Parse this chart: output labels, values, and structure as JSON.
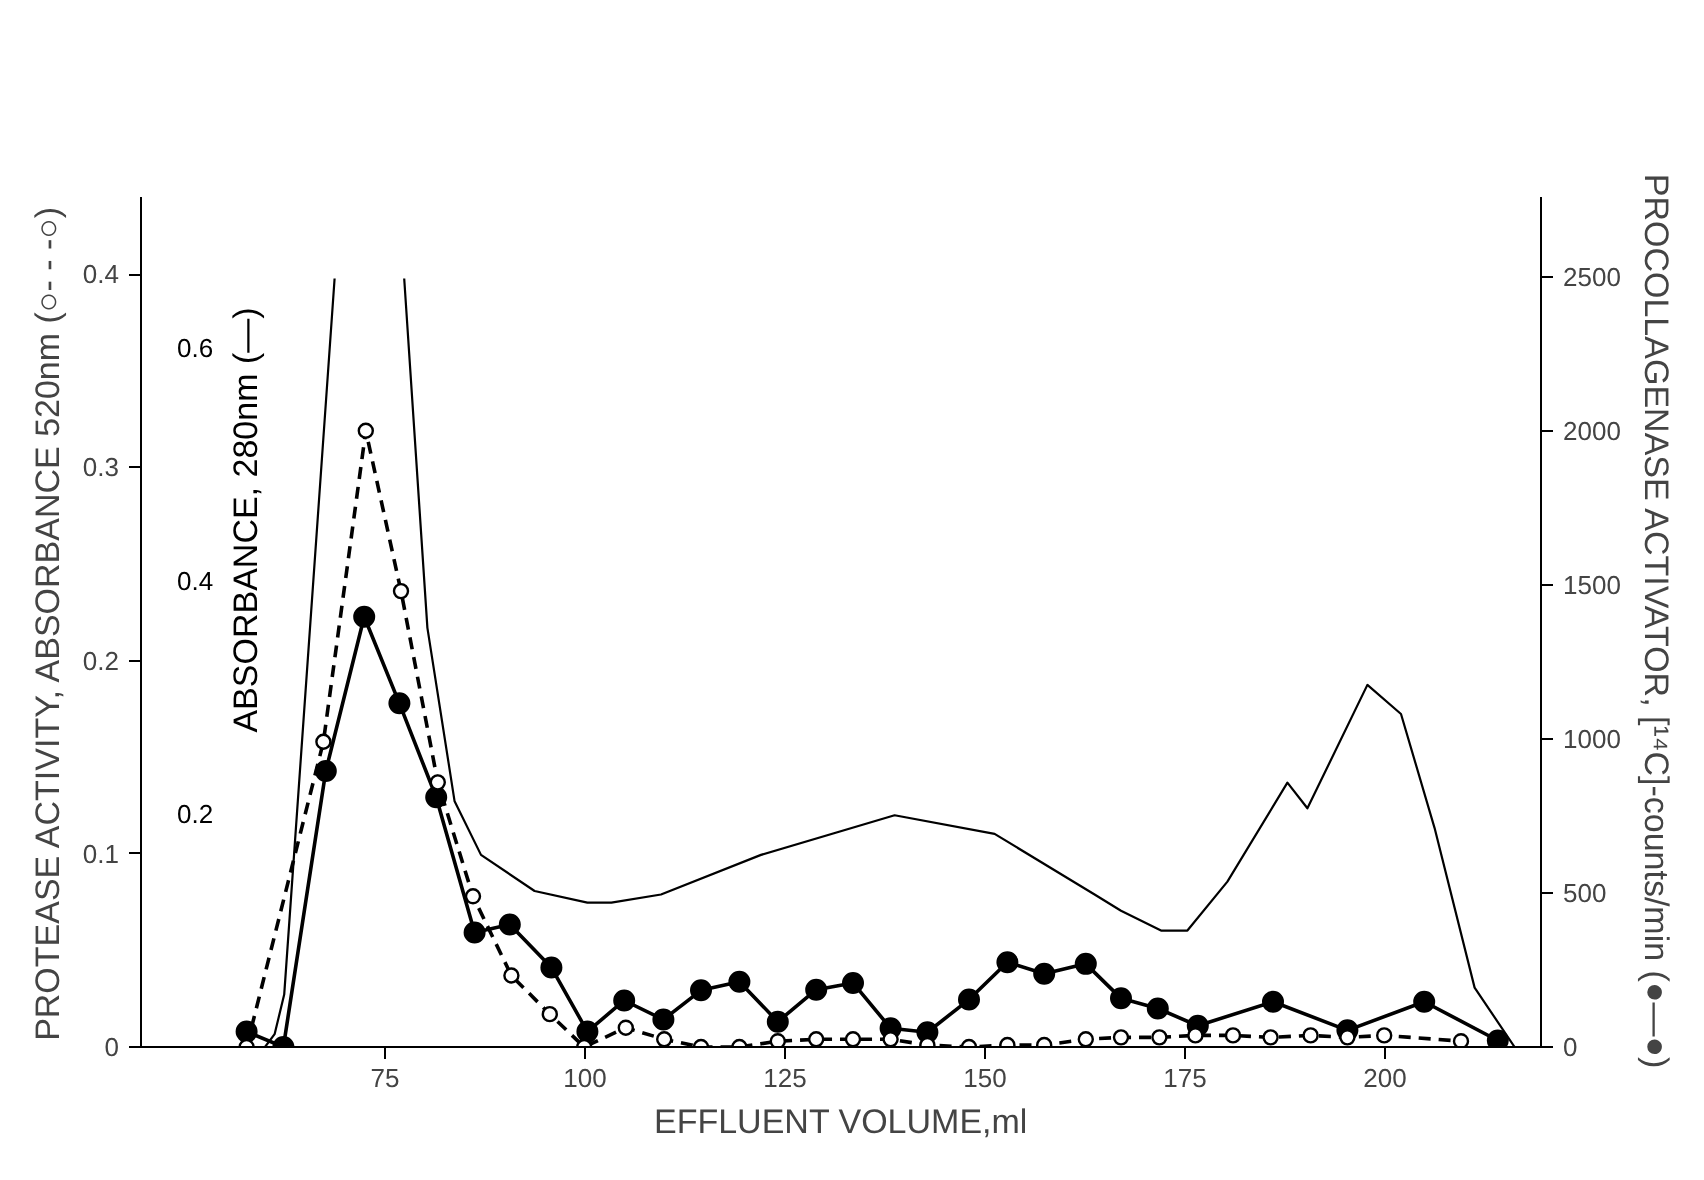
{
  "chart_data": {
    "type": "line",
    "xlabel": "EFFLUENT VOLUME,ml",
    "ylabel": "PROTEASE ACTIVITY, ABSORBANCE 520nm (○- - -○)",
    "y2label": "PROCOLLAGENASE ACTIVATOR, [¹⁴C]-counts/min (●—●)",
    "y3label": "ABSORBANCE, 280nm (—)",
    "xlim": [
      44.5,
      219.5
    ],
    "xticks": [
      75,
      100,
      125,
      150,
      175,
      200
    ],
    "ylim": [
      0,
      0.44
    ],
    "yticks": [
      0,
      0.1,
      0.2,
      0.3,
      0.4
    ],
    "y2lim": [
      0,
      2760
    ],
    "y2ticks": [
      0,
      500,
      1000,
      1500,
      2000,
      2500
    ],
    "y3lim": [
      0,
      0.73
    ],
    "y3ticks": [
      0.2,
      0.4,
      0.6
    ],
    "series": [
      {
        "axis": "y3",
        "color": "#000000",
        "marker": "none",
        "line_style": "solid",
        "x": [
          60,
          61.2,
          62.4,
          68.7,
          75,
          77.4,
          80.3,
          83.7,
          87,
          93.7,
          100.3,
          103.3,
          109.5,
          122,
          138.7,
          151.2,
          163.7,
          167,
          172,
          175.3,
          180.3,
          187.8,
          190.3,
          197.8,
          202,
          206.2,
          211.2,
          216.2,
          219
        ],
        "values": [
          0,
          0.011,
          0.045,
          0.66,
          null,
          0.66,
          0.36,
          0.211,
          0.165,
          0.134,
          0.124,
          0.124,
          0.131,
          0.165,
          0.199,
          0.183,
          0.131,
          0.117,
          0.1,
          0.1,
          0.142,
          0.227,
          0.205,
          0.311,
          0.286,
          0.188,
          0.051,
          0,
          0
        ]
      },
      {
        "axis": "y",
        "color": "#000000",
        "marker": "circle",
        "line_style": "dashed",
        "x": [
          57.7,
          67.3,
          72.6,
          77,
          81.6,
          86,
          90.8,
          95.6,
          99.9,
          105.1,
          109.9,
          114.5,
          119.3,
          124.1,
          128.9,
          133.5,
          138.2,
          142.8,
          148,
          152.8,
          157.4,
          162.6,
          167,
          171.8,
          176.3,
          181,
          185.7,
          190.7,
          195.3,
          199.9,
          209.5
        ],
        "values": [
          0,
          0.158,
          0.319,
          0.236,
          0.137,
          0.078,
          0.037,
          0.017,
          0,
          0.01,
          0.004,
          0,
          0,
          0.003,
          0.004,
          0.004,
          0.004,
          0.001,
          0,
          0.001,
          0.001,
          0.004,
          0.005,
          0.005,
          0.006,
          0.006,
          0.005,
          0.006,
          0.005,
          0.006,
          0.003
        ]
      },
      {
        "axis": "y2",
        "color": "#000000",
        "marker": "filled_circle",
        "line_style": "solid",
        "x": [
          57.7,
          62.3,
          67.6,
          72.4,
          76.8,
          81.4,
          86.2,
          90.6,
          95.8,
          100.3,
          104.9,
          109.8,
          114.5,
          119.3,
          124.1,
          128.9,
          133.5,
          138.2,
          142.8,
          148,
          152.8,
          157.4,
          162.6,
          167,
          171.6,
          176.6,
          186,
          195.3,
          204.9,
          214.1
        ],
        "values": [
          50,
          0,
          896,
          1397,
          1116,
          811,
          372,
          398,
          258,
          50,
          151,
          89,
          184,
          212,
          82,
          186,
          208,
          61,
          48,
          154,
          275,
          238,
          270,
          158,
          125,
          69,
          147,
          54,
          147,
          21
        ]
      }
    ]
  }
}
